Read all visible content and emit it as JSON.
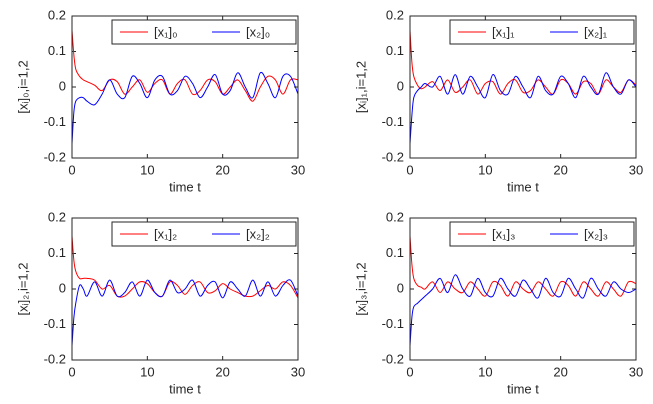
{
  "chart_data": [
    {
      "type": "line",
      "xlabel": "time t",
      "ylabel": "[xᵢ]₀,i=1,2",
      "legend": "upper right",
      "xlim": [
        0,
        30
      ],
      "xticks": [
        0,
        10,
        20,
        30
      ],
      "ylim": [
        -0.2,
        0.2
      ],
      "yticks": [
        -0.2,
        -0.1,
        0,
        0.1,
        0.2
      ],
      "x": [
        0,
        0.25,
        0.5,
        1,
        1.5,
        2,
        3,
        4,
        5,
        6,
        7,
        8,
        9,
        10,
        11,
        12,
        13,
        14,
        15,
        16,
        17,
        18,
        19,
        20,
        21,
        22,
        23,
        24,
        25,
        26,
        27,
        28,
        29,
        30
      ],
      "series": [
        {
          "name": "[x₁]₀",
          "color": "#ff0000",
          "values": [
            0.16,
            0.09,
            0.05,
            0.03,
            0.02,
            0.015,
            0.005,
            -0.01,
            0.02,
            0.015,
            -0.02,
            0.0,
            0.02,
            -0.015,
            0.01,
            0.02,
            -0.02,
            0.01,
            0.02,
            -0.02,
            -0.01,
            0.02,
            0.015,
            -0.02,
            0.0,
            0.02,
            -0.01,
            -0.04,
            0.0,
            0.03,
            0.02,
            -0.02,
            0.02,
            0.02
          ]
        },
        {
          "name": "[x₂]₀",
          "color": "#0000ff",
          "values": [
            -0.16,
            -0.07,
            -0.04,
            -0.03,
            -0.03,
            -0.04,
            -0.05,
            -0.02,
            0.02,
            -0.02,
            -0.03,
            0.03,
            0.01,
            -0.03,
            0.02,
            0.03,
            -0.02,
            -0.01,
            0.03,
            0.01,
            -0.03,
            0.0,
            0.035,
            -0.02,
            -0.01,
            0.04,
            0.0,
            -0.03,
            0.04,
            0.01,
            -0.03,
            0.03,
            0.03,
            -0.02
          ]
        }
      ]
    },
    {
      "type": "line",
      "xlabel": "time t",
      "ylabel": "[xᵢ]₁,i=1,2",
      "legend": "upper right",
      "xlim": [
        0,
        30
      ],
      "xticks": [
        0,
        10,
        20,
        30
      ],
      "ylim": [
        -0.2,
        0.2
      ],
      "yticks": [
        -0.2,
        -0.1,
        0,
        0.1,
        0.2
      ],
      "x": [
        0,
        0.25,
        0.5,
        1,
        1.5,
        2,
        3,
        4,
        5,
        6,
        7,
        8,
        9,
        10,
        11,
        12,
        13,
        14,
        15,
        16,
        17,
        18,
        19,
        20,
        21,
        22,
        23,
        24,
        25,
        26,
        27,
        28,
        29,
        30
      ],
      "series": [
        {
          "name": "[x₁]₁",
          "color": "#ff0000",
          "values": [
            0.16,
            0.07,
            0.03,
            0.005,
            -0.005,
            0.0,
            0.015,
            -0.01,
            0.02,
            -0.015,
            0.0,
            0.02,
            -0.02,
            0.01,
            0.015,
            -0.02,
            0.01,
            0.02,
            -0.015,
            -0.01,
            0.02,
            0.0,
            -0.02,
            0.02,
            0.01,
            -0.02,
            0.015,
            0.01,
            -0.02,
            0.02,
            0.0,
            -0.015,
            0.02,
            0.005
          ]
        },
        {
          "name": "[x₂]₁",
          "color": "#0000ff",
          "values": [
            -0.16,
            -0.08,
            -0.03,
            -0.01,
            0.0,
            0.01,
            0.0,
            0.03,
            -0.02,
            0.035,
            -0.02,
            0.03,
            0.0,
            -0.03,
            0.035,
            -0.01,
            -0.02,
            0.03,
            0.0,
            -0.03,
            0.03,
            -0.01,
            -0.02,
            0.03,
            0.01,
            -0.03,
            0.03,
            0.0,
            -0.02,
            0.04,
            0.0,
            -0.02,
            0.02,
            0.0
          ]
        }
      ]
    },
    {
      "type": "line",
      "xlabel": "time t",
      "ylabel": "[xᵢ]₂,i=1,2",
      "legend": "upper right",
      "xlim": [
        0,
        30
      ],
      "xticks": [
        0,
        10,
        20,
        30
      ],
      "ylim": [
        -0.2,
        0.2
      ],
      "yticks": [
        -0.2,
        -0.1,
        0,
        0.1,
        0.2
      ],
      "x": [
        0,
        0.25,
        0.5,
        1,
        1.5,
        2,
        3,
        4,
        5,
        6,
        7,
        8,
        9,
        10,
        11,
        12,
        13,
        14,
        15,
        16,
        17,
        18,
        19,
        20,
        21,
        22,
        23,
        24,
        25,
        26,
        27,
        28,
        29,
        30
      ],
      "series": [
        {
          "name": "[x₁]₂",
          "color": "#ff0000",
          "values": [
            0.15,
            0.08,
            0.05,
            0.03,
            0.03,
            0.03,
            0.025,
            0.0,
            0.01,
            -0.02,
            -0.02,
            0.0,
            0.02,
            0.015,
            -0.01,
            -0.02,
            0.02,
            0.01,
            -0.015,
            0.01,
            0.02,
            -0.01,
            -0.005,
            0.015,
            0.0,
            -0.01,
            -0.02,
            -0.02,
            -0.005,
            0.01,
            0.0,
            0.02,
            0.01,
            -0.025
          ]
        },
        {
          "name": "[x₂]₂",
          "color": "#0000ff",
          "values": [
            -0.16,
            -0.08,
            -0.04,
            0.01,
            0.0,
            -0.02,
            0.02,
            -0.02,
            0.025,
            -0.02,
            -0.01,
            0.02,
            -0.02,
            0.025,
            -0.01,
            -0.02,
            0.025,
            -0.01,
            0.0,
            0.025,
            -0.02,
            0.01,
            0.02,
            -0.025,
            0.02,
            0.0,
            -0.02,
            0.025,
            -0.02,
            0.02,
            -0.02,
            0.01,
            0.025,
            -0.02
          ]
        }
      ]
    },
    {
      "type": "line",
      "xlabel": "time t",
      "ylabel": "[xᵢ]₃,i=1,2",
      "legend": "upper right",
      "xlim": [
        0,
        30
      ],
      "xticks": [
        0,
        10,
        20,
        30
      ],
      "ylim": [
        -0.2,
        0.2
      ],
      "yticks": [
        -0.2,
        -0.1,
        0,
        0.1,
        0.2
      ],
      "x": [
        0,
        0.25,
        0.5,
        1,
        1.5,
        2,
        3,
        4,
        5,
        6,
        7,
        8,
        9,
        10,
        11,
        12,
        13,
        14,
        15,
        16,
        17,
        18,
        19,
        20,
        21,
        22,
        23,
        24,
        25,
        26,
        27,
        28,
        29,
        30
      ],
      "series": [
        {
          "name": "[x₁]₃",
          "color": "#ff0000",
          "values": [
            0.15,
            0.07,
            0.03,
            0.01,
            0.005,
            0.0,
            0.02,
            -0.01,
            0.02,
            0.0,
            -0.01,
            0.02,
            0.0,
            -0.02,
            0.02,
            0.01,
            -0.02,
            0.02,
            0.0,
            -0.01,
            0.02,
            0.0,
            -0.02,
            0.02,
            0.01,
            -0.02,
            0.02,
            0.0,
            -0.02,
            0.02,
            0.0,
            -0.02,
            0.02,
            0.015
          ]
        },
        {
          "name": "[x₂]₃",
          "color": "#0000ff",
          "values": [
            -0.16,
            -0.08,
            -0.05,
            -0.04,
            -0.03,
            -0.02,
            0.0,
            0.03,
            -0.01,
            0.04,
            0.0,
            -0.02,
            0.03,
            -0.01,
            -0.02,
            0.03,
            0.0,
            -0.02,
            0.025,
            0.0,
            -0.025,
            0.03,
            -0.01,
            -0.02,
            0.03,
            0.0,
            -0.025,
            0.03,
            0.0,
            -0.02,
            0.02,
            0.0,
            -0.01,
            0.0
          ]
        }
      ]
    }
  ]
}
